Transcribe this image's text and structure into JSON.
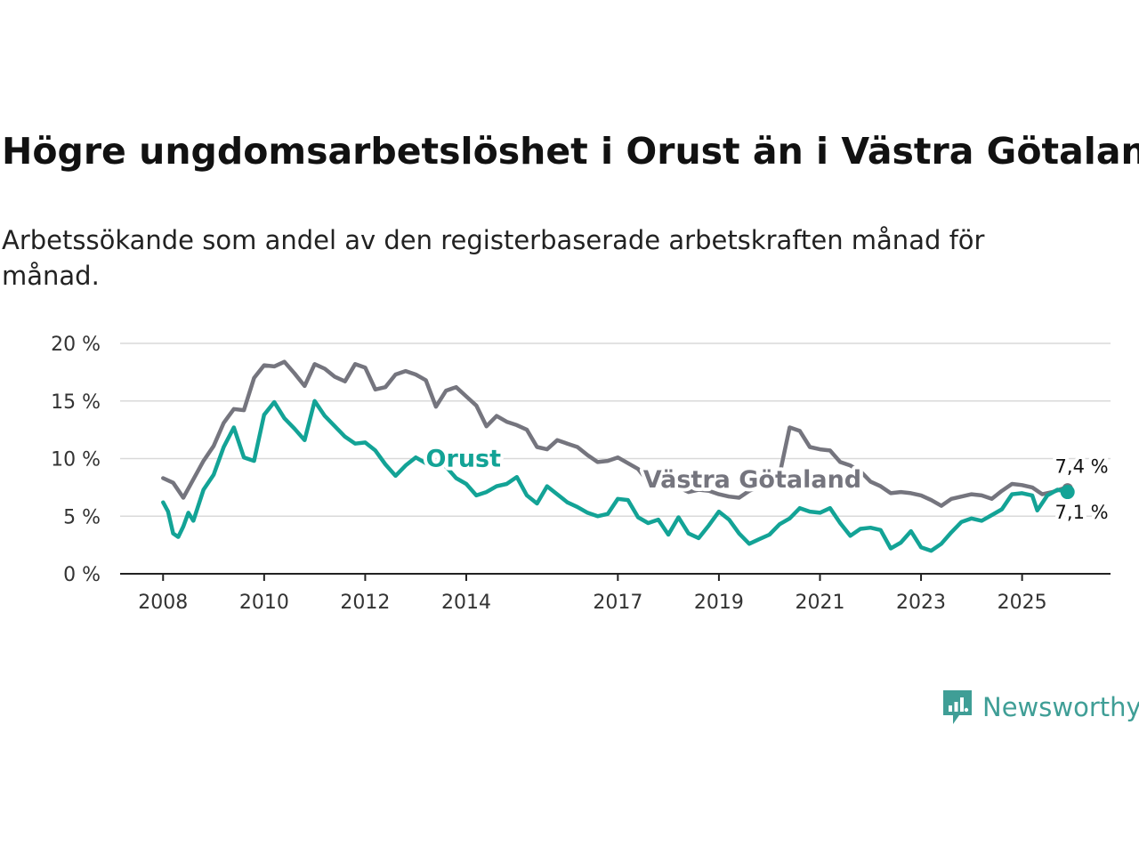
{
  "title": "Högre ungdomsarbetslöshet i Orust än i Västra Götaland",
  "subtitle": "Arbetssökande som andel av den registerbaserade arbetskraften månad för månad.",
  "brand": {
    "name": "Newsworthy",
    "color": "#3f9e96"
  },
  "colors": {
    "orust": "#13a396",
    "vg": "#75757e",
    "grid": "#d9d9d9",
    "axis": "#222222"
  },
  "chart_data": {
    "type": "line",
    "title": "Högre ungdomsarbetslöshet i Orust än i Västra Götaland",
    "xlabel": "",
    "ylabel": "",
    "ylim": [
      0,
      20
    ],
    "y_ticks": [
      0,
      5,
      10,
      15,
      20
    ],
    "y_tick_labels": [
      "0 %",
      "5 %",
      "10 %",
      "15 %",
      "20 %"
    ],
    "x_ticks": [
      2008,
      2010,
      2012,
      2014,
      2017,
      2019,
      2021,
      2023,
      2025
    ],
    "x_tick_labels": [
      "2008",
      "2010",
      "2012",
      "2014",
      "2017",
      "2019",
      "2021",
      "2023",
      "2025"
    ],
    "xlim": [
      2007.15,
      2026.75
    ],
    "grid": true,
    "series": [
      {
        "name": "Västra Götaland",
        "label": "Västra Götaland",
        "end_label": "7,4 %",
        "end_value": 7.4,
        "points": [
          [
            2008.0,
            8.3
          ],
          [
            2008.2,
            7.9
          ],
          [
            2008.4,
            6.6
          ],
          [
            2008.6,
            8.2
          ],
          [
            2008.8,
            9.8
          ],
          [
            2009.0,
            11.1
          ],
          [
            2009.2,
            13.1
          ],
          [
            2009.4,
            14.3
          ],
          [
            2009.6,
            14.2
          ],
          [
            2009.8,
            17.0
          ],
          [
            2010.0,
            18.1
          ],
          [
            2010.2,
            18.0
          ],
          [
            2010.4,
            18.4
          ],
          [
            2010.6,
            17.4
          ],
          [
            2010.8,
            16.3
          ],
          [
            2011.0,
            18.2
          ],
          [
            2011.2,
            17.8
          ],
          [
            2011.4,
            17.1
          ],
          [
            2011.6,
            16.7
          ],
          [
            2011.8,
            18.2
          ],
          [
            2012.0,
            17.9
          ],
          [
            2012.2,
            16.0
          ],
          [
            2012.4,
            16.2
          ],
          [
            2012.6,
            17.3
          ],
          [
            2012.8,
            17.6
          ],
          [
            2013.0,
            17.3
          ],
          [
            2013.2,
            16.8
          ],
          [
            2013.4,
            14.5
          ],
          [
            2013.6,
            15.9
          ],
          [
            2013.8,
            16.2
          ],
          [
            2014.0,
            15.4
          ],
          [
            2014.2,
            14.6
          ],
          [
            2014.4,
            12.8
          ],
          [
            2014.6,
            13.7
          ],
          [
            2014.8,
            13.2
          ],
          [
            2015.0,
            12.9
          ],
          [
            2015.2,
            12.5
          ],
          [
            2015.4,
            11.0
          ],
          [
            2015.6,
            10.8
          ],
          [
            2015.8,
            11.6
          ],
          [
            2016.0,
            11.3
          ],
          [
            2016.2,
            11.0
          ],
          [
            2016.4,
            10.3
          ],
          [
            2016.6,
            9.7
          ],
          [
            2016.8,
            9.8
          ],
          [
            2017.0,
            10.1
          ],
          [
            2017.2,
            9.6
          ],
          [
            2017.4,
            9.1
          ],
          [
            2017.6,
            8.0
          ],
          [
            2017.8,
            7.9
          ],
          [
            2018.0,
            7.6
          ],
          [
            2018.2,
            7.5
          ],
          [
            2018.4,
            7.1
          ],
          [
            2018.6,
            7.3
          ],
          [
            2018.8,
            7.2
          ],
          [
            2019.0,
            6.9
          ],
          [
            2019.2,
            6.7
          ],
          [
            2019.4,
            6.6
          ],
          [
            2019.6,
            7.2
          ],
          [
            2019.8,
            7.6
          ],
          [
            2020.0,
            8.1
          ],
          [
            2020.2,
            8.6
          ],
          [
            2020.4,
            12.7
          ],
          [
            2020.6,
            12.4
          ],
          [
            2020.8,
            11.0
          ],
          [
            2021.0,
            10.8
          ],
          [
            2021.2,
            10.7
          ],
          [
            2021.4,
            9.7
          ],
          [
            2021.6,
            9.4
          ],
          [
            2021.8,
            8.9
          ],
          [
            2022.0,
            8.0
          ],
          [
            2022.2,
            7.6
          ],
          [
            2022.4,
            7.0
          ],
          [
            2022.6,
            7.1
          ],
          [
            2022.8,
            7.0
          ],
          [
            2023.0,
            6.8
          ],
          [
            2023.2,
            6.4
          ],
          [
            2023.4,
            5.9
          ],
          [
            2023.6,
            6.5
          ],
          [
            2023.8,
            6.7
          ],
          [
            2024.0,
            6.9
          ],
          [
            2024.2,
            6.8
          ],
          [
            2024.4,
            6.5
          ],
          [
            2024.6,
            7.2
          ],
          [
            2024.8,
            7.8
          ],
          [
            2025.0,
            7.7
          ],
          [
            2025.2,
            7.5
          ],
          [
            2025.4,
            6.9
          ],
          [
            2025.6,
            7.1
          ],
          [
            2025.8,
            7.4
          ],
          [
            2025.9,
            7.4
          ]
        ]
      },
      {
        "name": "Orust",
        "label": "Orust",
        "end_label": "7,1 %",
        "end_value": 7.1,
        "points": [
          [
            2008.0,
            6.2
          ],
          [
            2008.1,
            5.4
          ],
          [
            2008.2,
            3.5
          ],
          [
            2008.3,
            3.2
          ],
          [
            2008.4,
            4.1
          ],
          [
            2008.5,
            5.3
          ],
          [
            2008.6,
            4.6
          ],
          [
            2008.8,
            7.3
          ],
          [
            2009.0,
            8.6
          ],
          [
            2009.2,
            11.0
          ],
          [
            2009.4,
            12.7
          ],
          [
            2009.6,
            10.1
          ],
          [
            2009.8,
            9.8
          ],
          [
            2010.0,
            13.8
          ],
          [
            2010.2,
            14.9
          ],
          [
            2010.4,
            13.5
          ],
          [
            2010.6,
            12.6
          ],
          [
            2010.8,
            11.6
          ],
          [
            2011.0,
            15.0
          ],
          [
            2011.2,
            13.7
          ],
          [
            2011.4,
            12.8
          ],
          [
            2011.6,
            11.9
          ],
          [
            2011.8,
            11.3
          ],
          [
            2012.0,
            11.4
          ],
          [
            2012.2,
            10.7
          ],
          [
            2012.4,
            9.5
          ],
          [
            2012.6,
            8.5
          ],
          [
            2012.8,
            9.4
          ],
          [
            2013.0,
            10.1
          ],
          [
            2013.2,
            9.6
          ],
          [
            2013.4,
            9.7
          ],
          [
            2013.6,
            9.3
          ],
          [
            2013.8,
            8.3
          ],
          [
            2014.0,
            7.8
          ],
          [
            2014.2,
            6.8
          ],
          [
            2014.4,
            7.1
          ],
          [
            2014.6,
            7.6
          ],
          [
            2014.8,
            7.8
          ],
          [
            2015.0,
            8.4
          ],
          [
            2015.2,
            6.8
          ],
          [
            2015.4,
            6.1
          ],
          [
            2015.6,
            7.6
          ],
          [
            2015.8,
            6.9
          ],
          [
            2016.0,
            6.2
          ],
          [
            2016.2,
            5.8
          ],
          [
            2016.4,
            5.3
          ],
          [
            2016.6,
            5.0
          ],
          [
            2016.8,
            5.2
          ],
          [
            2017.0,
            6.5
          ],
          [
            2017.2,
            6.4
          ],
          [
            2017.4,
            4.9
          ],
          [
            2017.6,
            4.4
          ],
          [
            2017.8,
            4.7
          ],
          [
            2018.0,
            3.4
          ],
          [
            2018.2,
            4.9
          ],
          [
            2018.4,
            3.5
          ],
          [
            2018.6,
            3.1
          ],
          [
            2018.8,
            4.2
          ],
          [
            2019.0,
            5.4
          ],
          [
            2019.2,
            4.7
          ],
          [
            2019.4,
            3.5
          ],
          [
            2019.6,
            2.6
          ],
          [
            2019.8,
            3.0
          ],
          [
            2020.0,
            3.4
          ],
          [
            2020.2,
            4.3
          ],
          [
            2020.4,
            4.8
          ],
          [
            2020.6,
            5.7
          ],
          [
            2020.8,
            5.4
          ],
          [
            2021.0,
            5.3
          ],
          [
            2021.2,
            5.7
          ],
          [
            2021.4,
            4.4
          ],
          [
            2021.6,
            3.3
          ],
          [
            2021.8,
            3.9
          ],
          [
            2022.0,
            4.0
          ],
          [
            2022.2,
            3.8
          ],
          [
            2022.4,
            2.2
          ],
          [
            2022.6,
            2.7
          ],
          [
            2022.8,
            3.7
          ],
          [
            2023.0,
            2.3
          ],
          [
            2023.2,
            2.0
          ],
          [
            2023.4,
            2.6
          ],
          [
            2023.6,
            3.6
          ],
          [
            2023.8,
            4.5
          ],
          [
            2024.0,
            4.8
          ],
          [
            2024.2,
            4.6
          ],
          [
            2024.4,
            5.1
          ],
          [
            2024.6,
            5.6
          ],
          [
            2024.8,
            6.9
          ],
          [
            2025.0,
            7.0
          ],
          [
            2025.2,
            6.8
          ],
          [
            2025.3,
            5.5
          ],
          [
            2025.5,
            6.8
          ],
          [
            2025.7,
            7.3
          ],
          [
            2025.9,
            7.1
          ]
        ]
      }
    ]
  }
}
